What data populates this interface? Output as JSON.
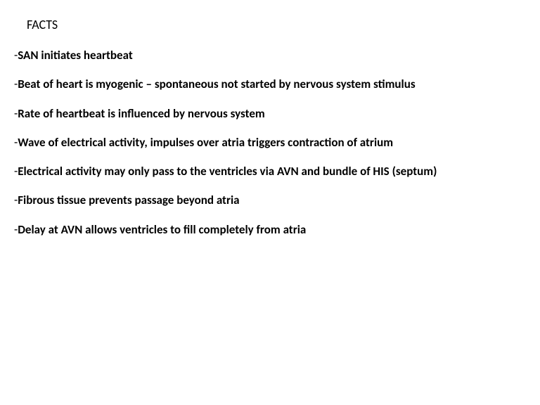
{
  "title": "FACTS",
  "title_fontsize": 18,
  "title_fontweight": 400,
  "fact_fontsize": 17,
  "fact_fontweight": 700,
  "text_color": "#000000",
  "background_color": "#ffffff",
  "prefix": "-",
  "facts": [
    "SAN initiates heartbeat",
    "Beat of heart is myogenic – spontaneous not started by nervous system stimulus",
    "Rate of heartbeat is influenced by nervous system",
    "Wave of electrical activity, impulses over atria triggers contraction of atrium",
    "Electrical activity may only pass to the ventricles via AVN and bundle of HIS (septum)",
    "Fibrous tissue prevents passage beyond atria",
    "Delay at AVN allows ventricles to fill completely from atria"
  ]
}
